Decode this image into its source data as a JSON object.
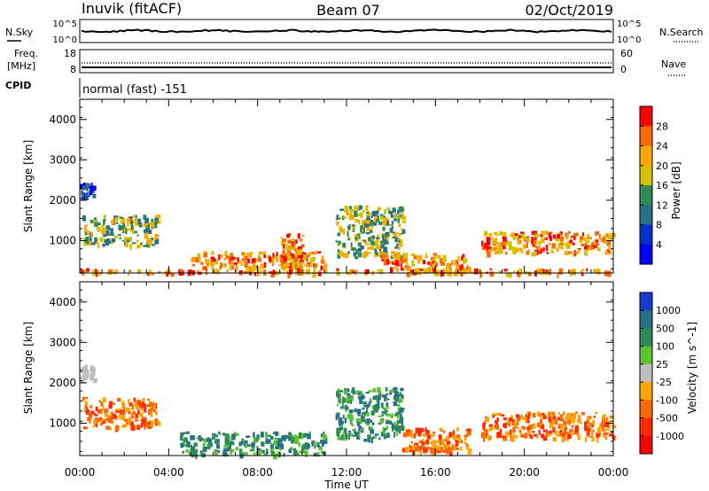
{
  "header": {
    "station": "Inuvik (fitACF)",
    "beam": "Beam 07",
    "date": "02/Oct/2019"
  },
  "strips": {
    "nsky": {
      "label": "N.Sky",
      "tick_top": "10^5",
      "tick_bottom": "10^0"
    },
    "nsearch": {
      "label": "N.Search",
      "tick_top": "10^5",
      "tick_bottom": "10^0"
    },
    "freq": {
      "label_top": "Freq.",
      "label_bottom": "[MHz]",
      "tick_top": "18",
      "tick_bottom": "8"
    },
    "nave": {
      "label": "Nave",
      "tick_top": "60",
      "tick_bottom": "0"
    },
    "cpid": {
      "label": "CPID",
      "mode": "normal (fast) -151"
    }
  },
  "chart_data": [
    {
      "type": "heatmap",
      "panel": "power",
      "ylabel": "Slant Range [km]",
      "y_ticks": [
        "1000",
        "2000",
        "3000",
        "4000"
      ],
      "ylim": [
        200,
        4500
      ],
      "xlim": [
        0,
        24
      ],
      "colorbar": {
        "label": "Power [dB]",
        "ticks": [
          "28",
          "24",
          "20",
          "16",
          "12",
          "8",
          "4"
        ],
        "colors": [
          "#ff0000",
          "#ff6a00",
          "#ffa500",
          "#d7c000",
          "#2e8b57",
          "#2a6e88",
          "#0033cc",
          "#0000ff"
        ]
      },
      "echo_regions": [
        {
          "t": [
            0.0,
            24.0
          ],
          "r": [
            200,
            320
          ],
          "level": "strong"
        },
        {
          "t": [
            0.1,
            3.5
          ],
          "r": [
            900,
            1650
          ],
          "level": "medium"
        },
        {
          "t": [
            5.0,
            11.0
          ],
          "r": [
            350,
            750
          ],
          "level": "strong"
        },
        {
          "t": [
            9.0,
            10.0
          ],
          "r": [
            300,
            1200
          ],
          "level": "strong"
        },
        {
          "t": [
            11.5,
            14.5
          ],
          "r": [
            600,
            1900
          ],
          "level": "medium"
        },
        {
          "t": [
            13.5,
            17.5
          ],
          "r": [
            300,
            700
          ],
          "level": "strong"
        },
        {
          "t": [
            18.0,
            24.0
          ],
          "r": [
            700,
            1250
          ],
          "level": "strong"
        },
        {
          "t": [
            0.0,
            0.6
          ],
          "r": [
            2100,
            2450
          ],
          "level": "weak"
        }
      ]
    },
    {
      "type": "heatmap",
      "panel": "velocity",
      "ylabel": "Slant Range [km]",
      "y_ticks": [
        "1000",
        "2000",
        "3000",
        "4000"
      ],
      "ylim": [
        200,
        4500
      ],
      "xlim": [
        0,
        24
      ],
      "xlabel": "Time UT",
      "x_ticks": [
        "00:00",
        "04:00",
        "08:00",
        "12:00",
        "16:00",
        "20:00",
        "00:00"
      ],
      "colorbar": {
        "label": "Velocity [m s^-1]",
        "ticks": [
          "1000",
          "500",
          "100",
          "25",
          "-25",
          "-100",
          "-500",
          "-1000"
        ],
        "colors": [
          "#1a3bd1",
          "#2a6e88",
          "#2e8b57",
          "#5cc232",
          "#bfbfbf",
          "#ffa500",
          "#ff6a00",
          "#ff2a00",
          "#ff0000"
        ]
      },
      "echo_regions": [
        {
          "t": [
            0.1,
            3.5
          ],
          "r": [
            900,
            1650
          ],
          "level": "negative"
        },
        {
          "t": [
            4.5,
            11.0
          ],
          "r": [
            250,
            800
          ],
          "level": "positive"
        },
        {
          "t": [
            11.5,
            14.5
          ],
          "r": [
            600,
            1900
          ],
          "level": "positive"
        },
        {
          "t": [
            14.5,
            17.5
          ],
          "r": [
            300,
            900
          ],
          "level": "negative"
        },
        {
          "t": [
            18.0,
            24.0
          ],
          "r": [
            650,
            1300
          ],
          "level": "negative"
        },
        {
          "t": [
            0.0,
            0.6
          ],
          "r": [
            2100,
            2450
          ],
          "level": "neutral"
        }
      ]
    }
  ]
}
